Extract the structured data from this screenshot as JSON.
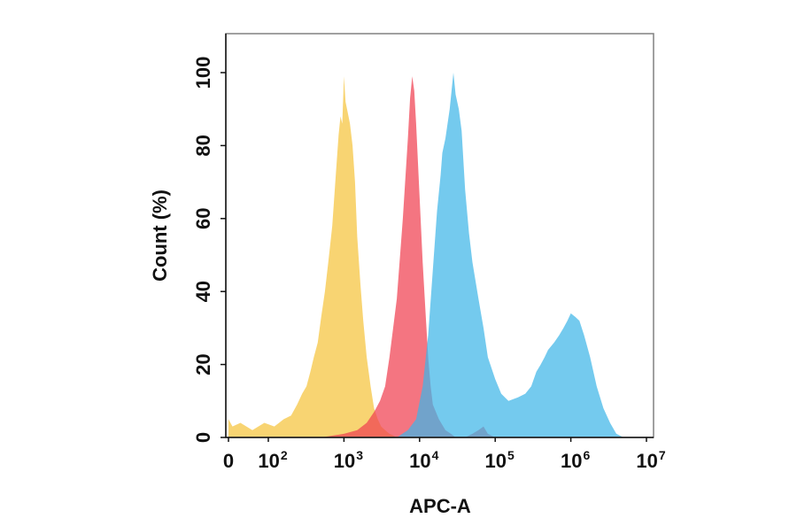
{
  "chart_data": {
    "type": "area",
    "title": "",
    "xlabel": "APC-A",
    "ylabel": "Count  (%)",
    "x_scale": "biexponential",
    "xlim": [
      0,
      10000000
    ],
    "ylim": [
      0,
      110
    ],
    "grid": false,
    "legend": "none",
    "x_ticks": [
      {
        "value": 0,
        "base": "0",
        "exp": ""
      },
      {
        "value": 100,
        "base": "10",
        "exp": "2"
      },
      {
        "value": 1000,
        "base": "10",
        "exp": "3"
      },
      {
        "value": 10000,
        "base": "10",
        "exp": "4"
      },
      {
        "value": 100000,
        "base": "10",
        "exp": "5"
      },
      {
        "value": 1000000,
        "base": "10",
        "exp": "6"
      },
      {
        "value": 10000000,
        "base": "10",
        "exp": "7"
      }
    ],
    "y_ticks": [
      0,
      20,
      40,
      60,
      80,
      100
    ],
    "series": [
      {
        "color": "#F5C43B",
        "opacity": 0.72,
        "x": [
          0,
          10,
          30,
          60,
          90,
          120,
          160,
          200,
          240,
          280,
          320,
          360,
          400,
          450,
          500,
          560,
          620,
          700,
          780,
          850,
          900,
          950,
          1000,
          1050,
          1100,
          1200,
          1300,
          1400,
          1500,
          1650,
          1800,
          2000,
          2250,
          2500,
          2800,
          3100,
          3500,
          4000,
          4500,
          5000,
          6000
        ],
        "y": [
          5,
          3,
          4,
          2,
          4,
          3,
          5,
          6,
          9,
          12,
          14,
          18,
          22,
          26,
          33,
          40,
          48,
          58,
          72,
          83,
          88,
          86,
          99,
          92,
          90,
          86,
          80,
          70,
          55,
          42,
          32,
          22,
          14,
          8,
          5,
          3,
          2,
          1,
          0.5,
          0,
          0
        ]
      },
      {
        "color": "#F04050",
        "opacity": 0.72,
        "x": [
          500,
          1000,
          1500,
          2000,
          2500,
          3000,
          3500,
          4000,
          5000,
          6000,
          7000,
          7500,
          8000,
          8500,
          9000,
          10000,
          11000,
          12000,
          13000,
          14000,
          15000,
          18000,
          22000,
          26000,
          30000,
          40000,
          50000,
          60000,
          70000,
          80000,
          100000
        ],
        "y": [
          0,
          1,
          2,
          4,
          7,
          10,
          14,
          22,
          38,
          60,
          82,
          93,
          99,
          95,
          86,
          66,
          48,
          34,
          22,
          14,
          9,
          5,
          2,
          1,
          0,
          0,
          1,
          2,
          3,
          1,
          0
        ]
      },
      {
        "color": "#3FB6E8",
        "opacity": 0.72,
        "x": [
          5000,
          7000,
          9000,
          11000,
          13000,
          15000,
          17000,
          19000,
          20000,
          22000,
          25000,
          28000,
          30000,
          33000,
          36000,
          40000,
          45000,
          50000,
          60000,
          70000,
          80000,
          100000,
          120000,
          150000,
          200000,
          250000,
          300000,
          350000,
          400000,
          450000,
          500000,
          600000,
          700000,
          800000,
          900000,
          1000000,
          1150000,
          1300000,
          1500000,
          1800000,
          2200000,
          2700000,
          3300000,
          4000000,
          5000000
        ],
        "y": [
          0,
          2,
          5,
          14,
          28,
          46,
          62,
          72,
          78,
          82,
          90,
          100,
          94,
          90,
          84,
          68,
          56,
          48,
          38,
          30,
          22,
          16,
          12,
          10,
          11,
          12,
          14,
          18,
          20,
          22,
          24,
          26,
          28,
          30,
          32,
          34,
          33,
          32,
          28,
          22,
          14,
          8,
          4,
          1,
          0
        ]
      }
    ]
  }
}
